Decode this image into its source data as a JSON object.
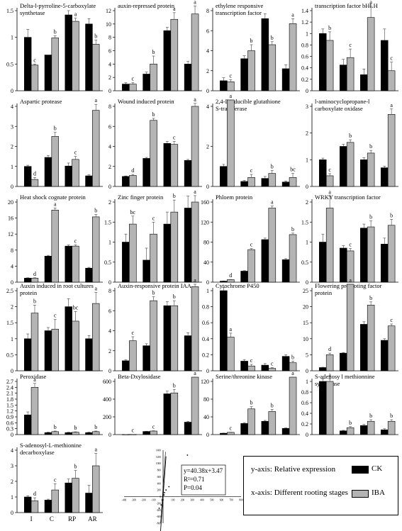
{
  "colors": {
    "CK": "#000000",
    "IBA": "#b4b4b4",
    "axis": "#000000",
    "errorbar": "#555555"
  },
  "stages": [
    "I",
    "C",
    "RP",
    "AR"
  ],
  "legend": {
    "y_axis": "y-axis:  Relative expression",
    "x_axis": "x-axis:  Different rooting stages",
    "series": [
      "CK",
      "IBA"
    ]
  },
  "chart_data": [
    {
      "type": "bar",
      "title": "Delta-l-pyrroline-5-carboxylate synthetase",
      "categories": [
        "I",
        "C",
        "RP",
        "AR"
      ],
      "yticks": [
        0,
        0.5,
        1.0,
        1.5
      ],
      "series": [
        {
          "name": "CK",
          "values": [
            1.0,
            0.67,
            1.42,
            1.25
          ],
          "errors": [
            0.15,
            0,
            0.08,
            0.1
          ]
        },
        {
          "name": "IBA",
          "values": [
            0.48,
            0.99,
            1.3,
            0.87
          ],
          "errors": [
            0.02,
            0.04,
            0.06,
            0.08
          ]
        }
      ],
      "letters": [
        "c",
        "b",
        "a",
        "b"
      ]
    },
    {
      "type": "bar",
      "title": "auxin-repressed protein",
      "categories": [
        "I",
        "C",
        "RP",
        "AR"
      ],
      "yticks": [
        0,
        2,
        4,
        6,
        8,
        10,
        12
      ],
      "series": [
        {
          "name": "CK",
          "values": [
            1.0,
            2.5,
            9.0,
            4.0
          ],
          "errors": [
            0.2,
            0.3,
            0.5,
            0.4
          ]
        },
        {
          "name": "IBA",
          "values": [
            1.0,
            4.0,
            10.7,
            11.5
          ],
          "errors": [
            0.2,
            1.2,
            1.0,
            1.2
          ]
        }
      ],
      "letters": [
        "c",
        "b",
        "a",
        "a"
      ]
    },
    {
      "type": "bar",
      "title": "ethylene responsive transcription factor",
      "categories": [
        "I",
        "C",
        "RP",
        "AR"
      ],
      "yticks": [
        0,
        2,
        4,
        6,
        8
      ],
      "series": [
        {
          "name": "CK",
          "values": [
            1.0,
            3.2,
            7.2,
            2.2
          ],
          "errors": [
            0.3,
            0.3,
            0.5,
            0.4
          ]
        },
        {
          "name": "IBA",
          "values": [
            0.9,
            4.0,
            4.6,
            6.7
          ],
          "errors": [
            0.2,
            0.6,
            0.3,
            0.5
          ]
        }
      ],
      "letters": [
        "c",
        "b",
        "b",
        "a"
      ]
    },
    {
      "type": "bar",
      "title": "transcription factor bHLH",
      "categories": [
        "I",
        "C",
        "RP",
        "AR"
      ],
      "yticks": [
        0,
        0.2,
        0.4,
        0.6,
        0.8,
        1.0,
        1.2,
        1.4
      ],
      "series": [
        {
          "name": "CK",
          "values": [
            1.0,
            0.45,
            0.28,
            0.88
          ],
          "errors": [
            0.08,
            0.1,
            0.1,
            0.2
          ]
        },
        {
          "name": "IBA",
          "values": [
            0.88,
            0.58,
            1.28,
            0.35
          ],
          "errors": [
            0.15,
            0.15,
            0.2,
            0.15
          ]
        }
      ],
      "letters": [
        "b",
        "c",
        "a",
        "c"
      ]
    },
    {
      "type": "bar",
      "title": "Aspartic protease",
      "categories": [
        "I",
        "C",
        "RP",
        "AR"
      ],
      "yticks": [
        0,
        1,
        2,
        3,
        4
      ],
      "series": [
        {
          "name": "CK",
          "values": [
            1.0,
            1.45,
            1.02,
            0.53
          ],
          "errors": [
            0.06,
            0.1,
            0.15,
            0.05
          ]
        },
        {
          "name": "IBA",
          "values": [
            0.35,
            2.5,
            1.35,
            3.8
          ],
          "errors": [
            0.1,
            0.2,
            0.15,
            0.3
          ]
        }
      ],
      "letters": [
        "d",
        "b",
        "c",
        "a"
      ]
    },
    {
      "type": "bar",
      "title": "Wound induced protein",
      "categories": [
        "I",
        "C",
        "RP",
        "AR"
      ],
      "yticks": [
        0,
        2,
        4,
        6,
        8
      ],
      "series": [
        {
          "name": "CK",
          "values": [
            1.0,
            2.8,
            4.3,
            2.6
          ],
          "errors": [
            0.05,
            0.1,
            0.2,
            0.1
          ]
        },
        {
          "name": "IBA",
          "values": [
            1.1,
            6.6,
            4.2,
            8.0
          ],
          "errors": [
            0.1,
            0.2,
            0.3,
            0.3
          ]
        }
      ],
      "letters": [
        "d",
        "b",
        "c",
        "a"
      ]
    },
    {
      "type": "bar",
      "title": "2,4-Dinducible glutathione S-transferase",
      "categories": [
        "I",
        "C",
        "RP",
        "AR"
      ],
      "yticks": [
        0,
        2,
        4
      ],
      "series": [
        {
          "name": "CK",
          "values": [
            1.0,
            0.25,
            0.4,
            0.22
          ],
          "errors": [
            0.1,
            0.05,
            0.1,
            0.05
          ]
        },
        {
          "name": "IBA",
          "values": [
            16.0,
            0.45,
            0.65,
            0.45
          ],
          "errors": [
            2.0,
            0.15,
            0.15,
            0.2
          ]
        }
      ],
      "letters": [
        "a",
        "c",
        "b",
        "bc"
      ]
    },
    {
      "type": "bar",
      "title": "l-aminocyclopropane-l carboxylate oxidase",
      "categories": [
        "I",
        "C",
        "RP",
        "AR"
      ],
      "yticks": [
        0,
        1,
        2,
        3
      ],
      "series": [
        {
          "name": "CK",
          "values": [
            1.0,
            1.5,
            1.0,
            0.7
          ],
          "errors": [
            0.06,
            0.08,
            0.08,
            0.06
          ]
        },
        {
          "name": "IBA",
          "values": [
            0.4,
            1.65,
            1.25,
            2.7
          ],
          "errors": [
            0.08,
            0.1,
            0.1,
            0.2
          ]
        }
      ],
      "letters": [
        "c",
        "b",
        "b",
        "a"
      ]
    },
    {
      "type": "bar",
      "title": "Heat shock cognate protein",
      "categories": [
        "I",
        "C",
        "RP",
        "AR"
      ],
      "yticks": [
        0,
        4,
        8,
        12,
        16,
        20
      ],
      "series": [
        {
          "name": "CK",
          "values": [
            1.0,
            6.5,
            9.0,
            3.5
          ],
          "errors": [
            0.1,
            0.2,
            0.3,
            0.2
          ]
        },
        {
          "name": "IBA",
          "values": [
            1.0,
            18.0,
            9.0,
            16.3
          ],
          "errors": [
            0.1,
            0.5,
            0.3,
            0.6
          ]
        }
      ],
      "letters": [
        "d",
        "a",
        "c",
        "b"
      ]
    },
    {
      "type": "bar",
      "title": "Zinc finger protein",
      "categories": [
        "I",
        "C",
        "RP",
        "AR"
      ],
      "yticks": [
        0,
        0.5,
        1.0,
        1.5,
        2.0
      ],
      "series": [
        {
          "name": "CK",
          "values": [
            1.0,
            0.55,
            1.45,
            1.85
          ],
          "errors": [
            0.2,
            0.3,
            0.3,
            0.3
          ]
        },
        {
          "name": "IBA",
          "values": [
            1.45,
            1.2,
            1.75,
            2.0
          ],
          "errors": [
            0.2,
            0.3,
            0.3,
            0.3
          ]
        }
      ],
      "letters": [
        "bc",
        "c",
        "b",
        "a"
      ]
    },
    {
      "type": "bar",
      "title": "Phloem protein",
      "categories": [
        "I",
        "C",
        "RP",
        "AR"
      ],
      "yticks": [
        0,
        40,
        80,
        120,
        160
      ],
      "series": [
        {
          "name": "CK",
          "values": [
            2,
            22,
            85,
            45
          ],
          "errors": [
            0.5,
            1,
            3,
            2
          ]
        },
        {
          "name": "IBA",
          "values": [
            5,
            65,
            148,
            95
          ],
          "errors": [
            0.5,
            2,
            4,
            3
          ]
        }
      ],
      "letters": [
        "d",
        "c",
        "a",
        "b"
      ]
    },
    {
      "type": "bar",
      "title": "WRKY transcription factor",
      "categories": [
        "I",
        "C",
        "RP",
        "AR"
      ],
      "yticks": [
        0,
        0.5,
        1.0,
        1.5,
        2.0
      ],
      "series": [
        {
          "name": "CK",
          "values": [
            1.0,
            0.85,
            1.35,
            0.95
          ],
          "errors": [
            0.2,
            0.06,
            0.1,
            0.15
          ]
        },
        {
          "name": "IBA",
          "values": [
            1.85,
            0.78,
            1.38,
            1.42
          ],
          "errors": [
            0.3,
            0.06,
            0.15,
            0.15
          ]
        }
      ],
      "letters": [
        "a",
        "c",
        "b",
        "b"
      ]
    },
    {
      "type": "bar",
      "title": "Auxin induced in root cultures protein",
      "categories": [
        "I",
        "C",
        "RP",
        "AR"
      ],
      "yticks": [
        0,
        0.5,
        1.0,
        1.5,
        2.0,
        2.5
      ],
      "series": [
        {
          "name": "CK",
          "values": [
            1.0,
            1.25,
            2.0,
            1.0
          ],
          "errors": [
            0.15,
            0.1,
            0.25,
            0.1
          ]
        },
        {
          "name": "IBA",
          "values": [
            1.8,
            1.3,
            1.55,
            2.1
          ],
          "errors": [
            0.25,
            0.3,
            0.3,
            0.35
          ]
        }
      ],
      "letters": [
        "b",
        "c",
        "bc",
        "a"
      ]
    },
    {
      "type": "bar",
      "title": "Auxin-responsive protein IAA",
      "categories": [
        "I",
        "C",
        "RP",
        "AR"
      ],
      "yticks": [
        0,
        2,
        4,
        6,
        8
      ],
      "series": [
        {
          "name": "CK",
          "values": [
            1.0,
            2.5,
            6.5,
            3.5
          ],
          "errors": [
            0.1,
            0.2,
            0.4,
            0.3
          ]
        },
        {
          "name": "IBA",
          "values": [
            3.0,
            7.0,
            6.5,
            8.4
          ],
          "errors": [
            0.4,
            0.4,
            0.5,
            0.5
          ]
        }
      ],
      "letters": [
        "c",
        "b",
        "b",
        "a"
      ]
    },
    {
      "type": "bar",
      "title": "Cytochrome P450",
      "categories": [
        "I",
        "C",
        "RP",
        "AR"
      ],
      "yticks": [
        0,
        0.2,
        0.4,
        0.6,
        0.8,
        1.0
      ],
      "series": [
        {
          "name": "CK",
          "values": [
            1.0,
            0.12,
            0.07,
            0.18
          ],
          "errors": [
            0.04,
            0.02,
            0.02,
            0.02
          ]
        },
        {
          "name": "IBA",
          "values": [
            0.42,
            0.06,
            0.03,
            0.1
          ],
          "errors": [
            0.05,
            0.02,
            0.01,
            0.02
          ]
        }
      ],
      "letters": [
        "a",
        "c",
        "c",
        "b"
      ]
    },
    {
      "type": "bar",
      "title": "Flowering promoting factor protein",
      "categories": [
        "I",
        "C",
        "RP",
        "AR"
      ],
      "yticks": [
        0,
        5,
        10,
        15,
        20,
        25
      ],
      "series": [
        {
          "name": "CK",
          "values": [
            1.0,
            5.5,
            14.5,
            9.5
          ],
          "errors": [
            0.1,
            0.2,
            0.8,
            0.5
          ]
        },
        {
          "name": "IBA",
          "values": [
            5.0,
            27.0,
            20.5,
            14.0
          ],
          "errors": [
            0.5,
            1.0,
            1.0,
            0.6
          ]
        }
      ],
      "letters": [
        "d",
        "a",
        "b",
        "c"
      ]
    },
    {
      "type": "bar",
      "title": "Peroxidase",
      "categories": [
        "I",
        "C",
        "RP",
        "AR"
      ],
      "yticks": [
        0,
        0.3,
        0.6,
        0.9,
        1.2,
        1.5,
        1.8,
        2.1,
        2.4,
        2.7
      ],
      "series": [
        {
          "name": "CK",
          "values": [
            1.0,
            0.1,
            0.1,
            0.1
          ],
          "errors": [
            0.15,
            0.02,
            0.02,
            0.02
          ]
        },
        {
          "name": "IBA",
          "values": [
            2.4,
            0.15,
            0.12,
            0.15
          ],
          "errors": [
            0.2,
            0.03,
            0.02,
            0.03
          ]
        }
      ],
      "letters": [
        "a",
        "b",
        "b",
        "b"
      ]
    },
    {
      "type": "bar",
      "title": "Beta-Dxylosidase",
      "categories": [
        "I",
        "C",
        "RP",
        "AR"
      ],
      "yticks": [
        0,
        200,
        400,
        600
      ],
      "series": [
        {
          "name": "CK",
          "values": [
            1,
            35,
            460,
            140
          ],
          "errors": [
            0.5,
            3,
            30,
            10
          ]
        },
        {
          "name": "IBA",
          "values": [
            2,
            40,
            470,
            650
          ],
          "errors": [
            0.5,
            4,
            40,
            80
          ]
        }
      ],
      "letters": [
        "c",
        "c",
        "b",
        "a"
      ]
    },
    {
      "type": "bar",
      "title": "Serine/threonine kinase",
      "categories": [
        "I",
        "C",
        "RP",
        "AR"
      ],
      "yticks": [
        0,
        40,
        80,
        120
      ],
      "series": [
        {
          "name": "CK",
          "values": [
            3,
            25,
            30,
            14
          ],
          "errors": [
            0.5,
            2,
            2,
            1
          ]
        },
        {
          "name": "IBA",
          "values": [
            5,
            58,
            52,
            130
          ],
          "errors": [
            0.5,
            5,
            5,
            15
          ]
        }
      ],
      "letters": [
        "c",
        "b",
        "b",
        "a"
      ]
    },
    {
      "type": "bar",
      "title": "S-adenosy l methionnine synthetase",
      "categories": [
        "I",
        "C",
        "RP",
        "AR"
      ],
      "yticks": [
        0,
        0.2,
        0.4,
        0.6,
        0.8,
        1.0
      ],
      "series": [
        {
          "name": "CK",
          "values": [
            1.0,
            0.07,
            0.17,
            0.09
          ],
          "errors": [
            0.05,
            0.01,
            0.02,
            0.02
          ]
        },
        {
          "name": "IBA",
          "values": [
            1.0,
            0.13,
            0.25,
            0.25
          ],
          "errors": [
            0.05,
            0.02,
            0.03,
            0.03
          ]
        }
      ],
      "letters": [
        "a",
        "b",
        "b",
        "b"
      ]
    },
    {
      "type": "bar",
      "title": "S-adenosyl-L-methionine decarboxylase",
      "categories": [
        "I",
        "C",
        "RP",
        "AR"
      ],
      "yticks": [
        0,
        1,
        2,
        3,
        4
      ],
      "series": [
        {
          "name": "CK",
          "values": [
            1.0,
            0.8,
            1.9,
            1.25
          ],
          "errors": [
            0.08,
            0.06,
            0.25,
            0.5
          ]
        },
        {
          "name": "IBA",
          "values": [
            0.75,
            1.45,
            2.2,
            3.0
          ],
          "errors": [
            0.2,
            0.4,
            0.5,
            0.8
          ]
        }
      ],
      "letters": [
        "d",
        "c",
        "b",
        "a"
      ]
    },
    {
      "type": "scatter",
      "title": "",
      "x": [
        -40,
        -10,
        10,
        30,
        60,
        250,
        -20,
        15
      ],
      "y": [
        -350,
        -100,
        50,
        200,
        300,
        1250,
        -250,
        120
      ],
      "xticks": [
        -400,
        -300,
        -200,
        -100,
        0,
        100,
        200,
        300,
        400,
        500,
        600,
        700,
        800
      ],
      "yticks": [
        -800,
        -600,
        -400,
        -200,
        0,
        200,
        400,
        600,
        800,
        1000,
        1200,
        1400
      ],
      "fit_slope": 40.38,
      "fit_intercept": 3.47,
      "annotation": [
        "y=40.38x+3.47",
        "R²=0.71",
        "P=0.04"
      ]
    }
  ]
}
